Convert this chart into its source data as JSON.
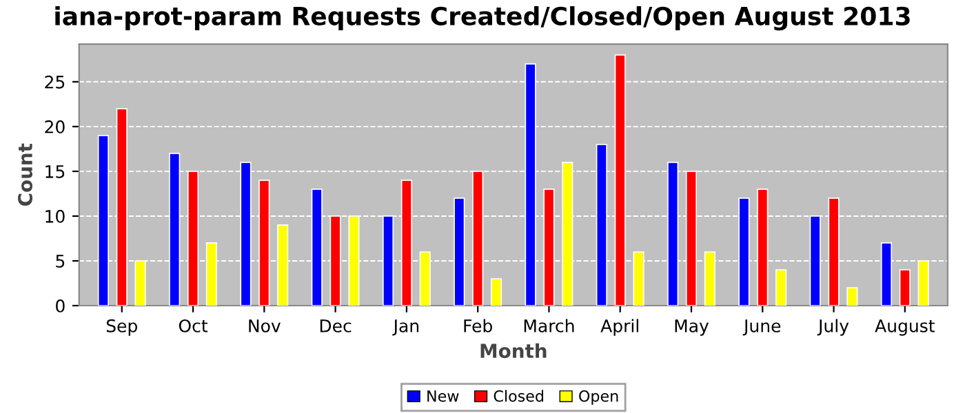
{
  "chart_data": {
    "type": "bar",
    "title": "iana-prot-param Requests Created/Closed/Open August 2013",
    "xlabel": "Month",
    "ylabel": "Count",
    "categories": [
      "Sep",
      "Oct",
      "Nov",
      "Dec",
      "Jan",
      "Feb",
      "March",
      "April",
      "May",
      "June",
      "July",
      "August"
    ],
    "series": [
      {
        "name": "New",
        "color": "#0000ff",
        "values": [
          19,
          17,
          16,
          13,
          10,
          12,
          27,
          18,
          16,
          12,
          10,
          7
        ]
      },
      {
        "name": "Closed",
        "color": "#ff0000",
        "values": [
          22,
          15,
          14,
          10,
          14,
          15,
          13,
          28,
          15,
          13,
          12,
          4
        ]
      },
      {
        "name": "Open",
        "color": "#ffff00",
        "values": [
          5,
          7,
          9,
          10,
          6,
          3,
          16,
          6,
          6,
          4,
          2,
          5
        ]
      }
    ],
    "ylim": [
      0,
      29.2
    ],
    "yticks": [
      0,
      5,
      10,
      15,
      20,
      25
    ],
    "grid": "y",
    "legend": "bottom"
  }
}
